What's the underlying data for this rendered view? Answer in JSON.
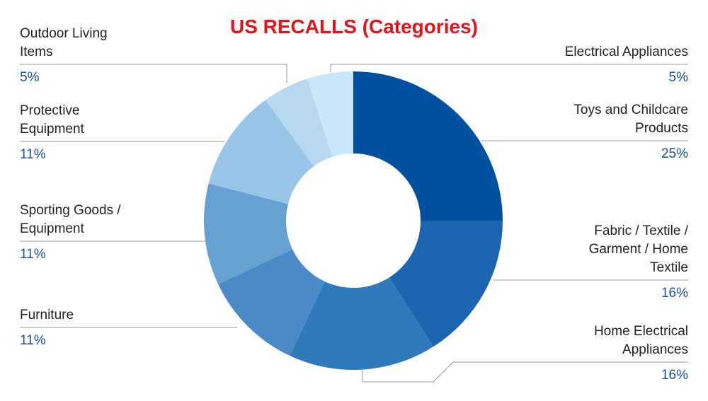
{
  "chart_data": {
    "type": "donut",
    "title": "US RECALLS (Categories)",
    "categories": [
      "Toys and Childcare Products",
      "Fabric / Textile / Garment / Home Textile",
      "Home Electrical Appliances",
      "Furniture",
      "Sporting Goods / Equipment",
      "Protective Equipment",
      "Outdoor Living Items",
      "Electrical Appliances"
    ],
    "values": [
      25,
      16,
      16,
      11,
      11,
      11,
      5,
      5
    ],
    "value_labels": [
      "25%",
      "16%",
      "16%",
      "11%",
      "11%",
      "11%",
      "5%",
      "5%"
    ],
    "colors": [
      "#0050a1",
      "#1b65b0",
      "#3079bc",
      "#4a8bc7",
      "#67a1d2",
      "#98c5e6",
      "#b6d9f0",
      "#c9e7f9"
    ]
  }
}
